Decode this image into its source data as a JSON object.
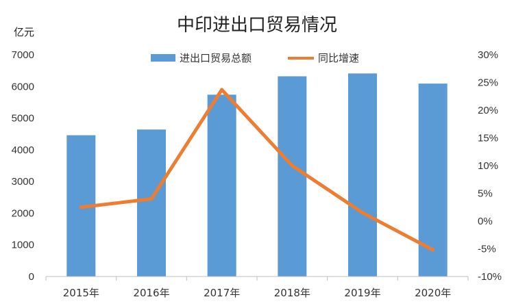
{
  "chart_data": {
    "type": "bar",
    "title": "中印进出口贸易情况",
    "y_unit_label": "亿元",
    "categories": [
      "2015年",
      "2016年",
      "2017年",
      "2018年",
      "2019年",
      "2020年"
    ],
    "series": [
      {
        "name": "进出口贸易总额",
        "type": "bar",
        "axis": "left",
        "values": [
          4460,
          4640,
          5740,
          6320,
          6410,
          6090
        ],
        "color": "#5B9BD5"
      },
      {
        "name": "同比增速",
        "type": "line",
        "axis": "right",
        "values": [
          2.5,
          4.0,
          23.7,
          10.0,
          1.5,
          -5.2
        ],
        "color": "#ED7D31"
      }
    ],
    "y_left": {
      "min": 0,
      "max": 7000,
      "step": 1000
    },
    "y_right": {
      "min": -10,
      "max": 30,
      "step": 5,
      "format": "percent"
    },
    "legend": "top-center",
    "grid": false
  }
}
